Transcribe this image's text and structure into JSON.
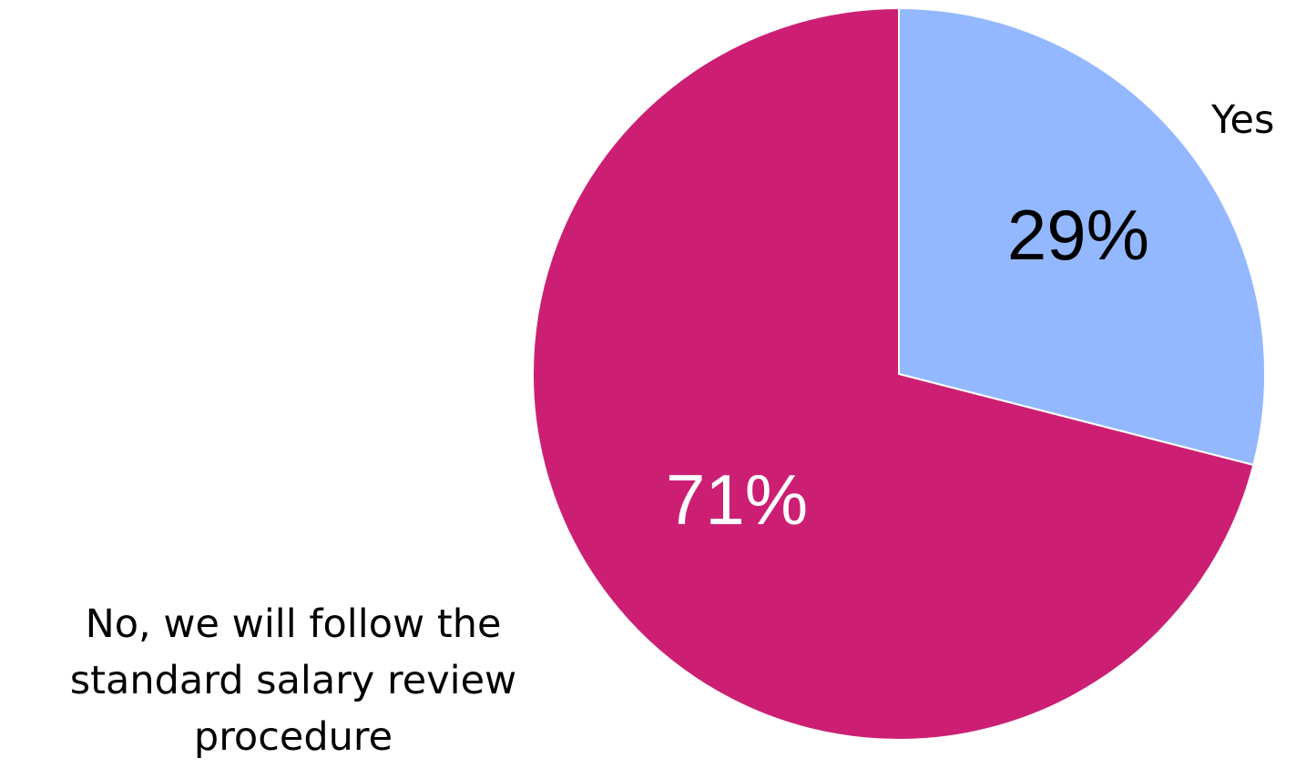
{
  "chart_data": {
    "type": "pie",
    "title": "",
    "start_angle_deg": 0,
    "direction": "clockwise",
    "slices": [
      {
        "label": "Yes",
        "value": 29,
        "value_label": "29%",
        "color": "#93b8ff",
        "value_label_color": "#000000"
      },
      {
        "label": "No, we will follow the standard salary review procedure",
        "value": 71,
        "value_label": "71%",
        "color": "#cc1f74",
        "value_label_color": "#ffffff"
      }
    ],
    "legend": "none",
    "category_labels_outside": true
  }
}
